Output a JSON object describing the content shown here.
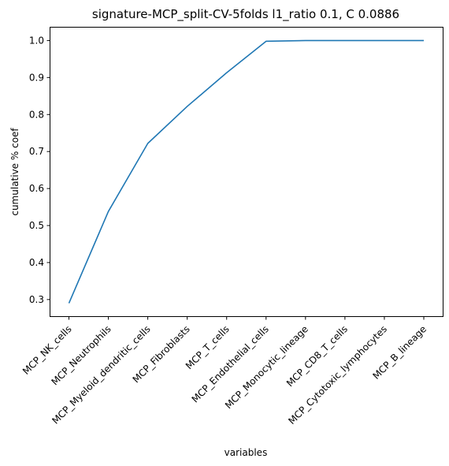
{
  "chart_data": {
    "type": "line",
    "title": "signature-MCP_split-CV-5folds l1_ratio 0.1, C 0.0886",
    "xlabel": "variables",
    "ylabel": "cumulative % coef",
    "categories": [
      "MCP_NK_cells",
      "MCP_Neutrophils",
      "MCP_Myeloid_dendritic_cells",
      "MCP_Fibroblasts",
      "MCP_T_cells",
      "MCP_Endothelial_cells",
      "MCP_Monocytic_lineage",
      "MCP_CD8_T_cells",
      "MCP_Cytotoxic_lymphocytes",
      "MCP_B_lineage"
    ],
    "values": [
      0.29,
      0.538,
      0.722,
      0.822,
      0.913,
      0.998,
      1.0,
      1.0,
      1.0,
      1.0
    ],
    "ylim": [
      0.255,
      1.035
    ],
    "yticks": [
      "0.3",
      "0.4",
      "0.5",
      "0.6",
      "0.7",
      "0.8",
      "0.9",
      "1.0"
    ],
    "grid": false,
    "line_color": "#1f77b4"
  }
}
